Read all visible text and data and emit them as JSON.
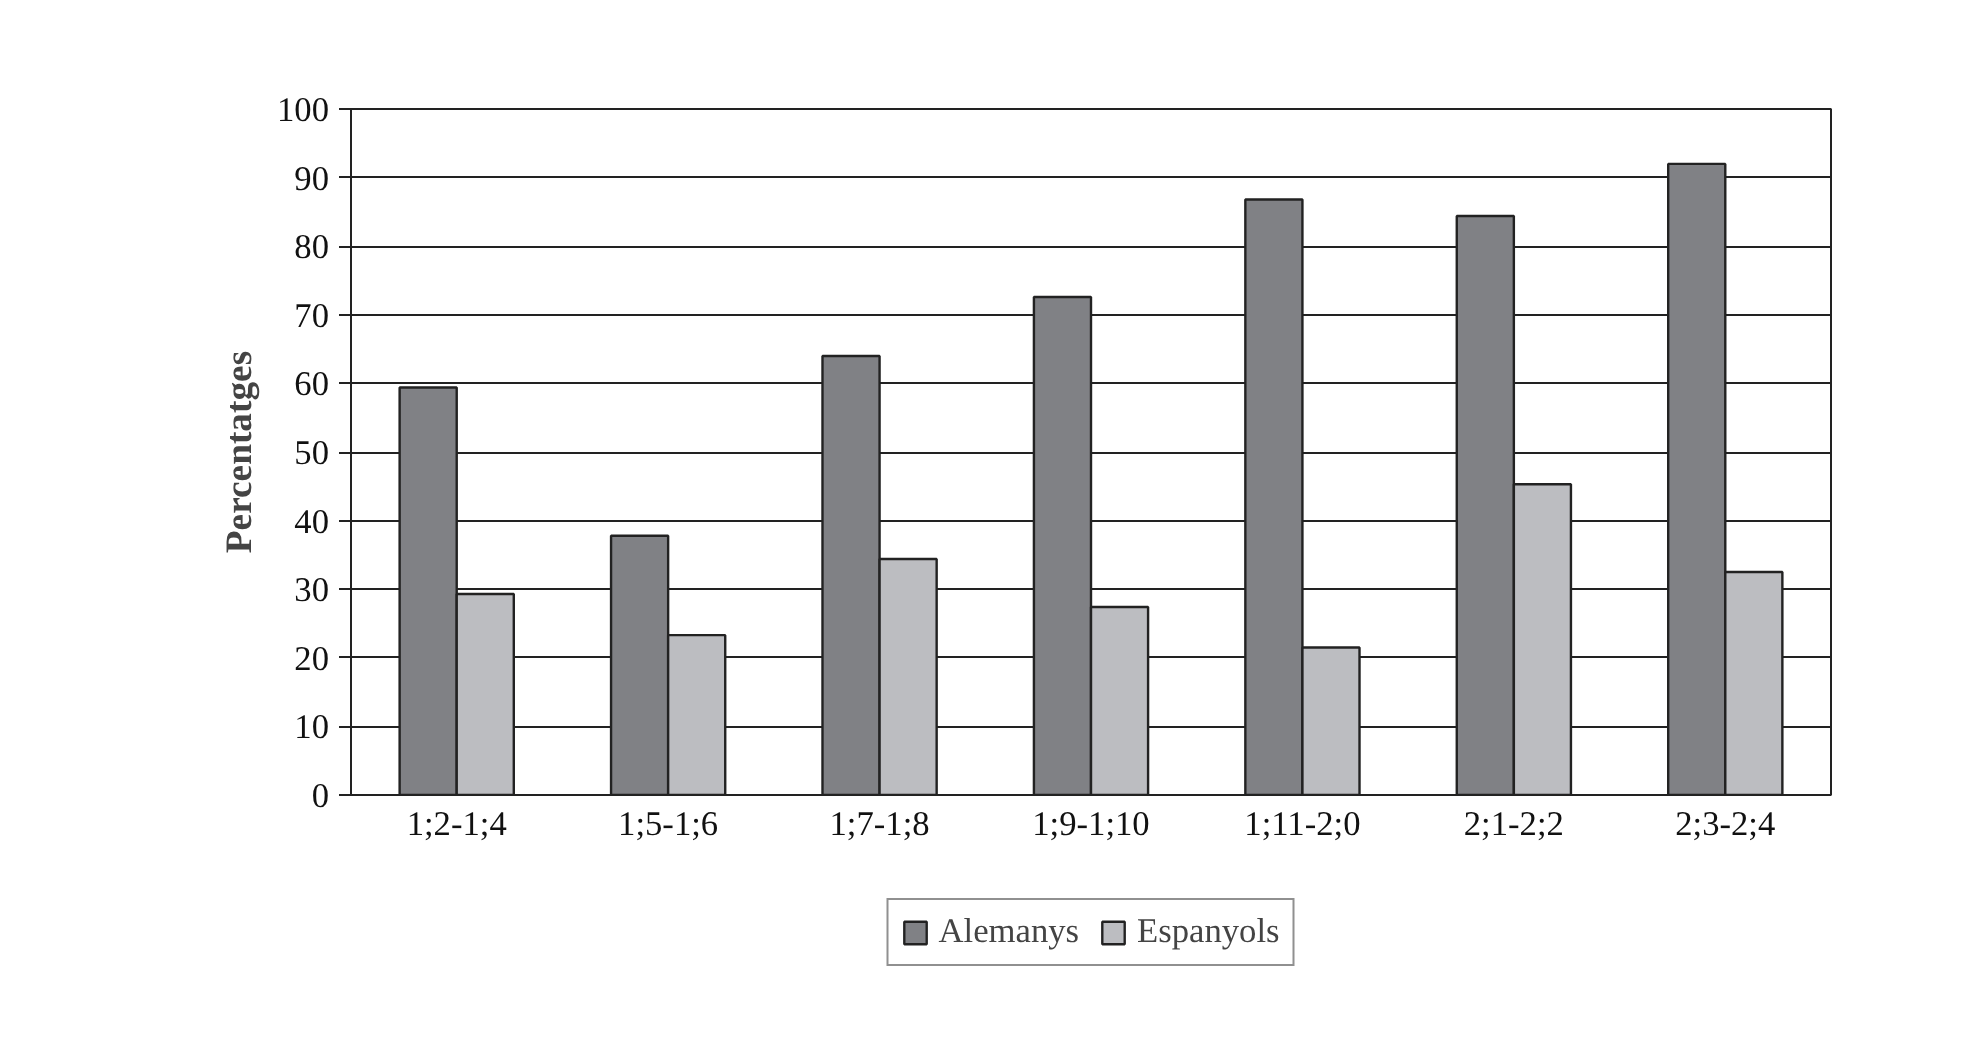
{
  "chart_data": {
    "type": "bar",
    "ylabel": "Percentatges",
    "categories": [
      "1;2-1;4",
      "1;5-1;6",
      "1;7-1;8",
      "1;9-1;10",
      "1;11-2;0",
      "2;1-2;2",
      "2;3-2;4"
    ],
    "series": [
      {
        "name": "Alemanys",
        "color": "#808185",
        "values": [
          59.4,
          37.8,
          64.0,
          72.6,
          86.8,
          84.4,
          92.0
        ]
      },
      {
        "name": "Espanyols",
        "color": "#bcbdc1",
        "values": [
          29.3,
          23.3,
          34.4,
          27.4,
          21.5,
          45.3,
          32.5
        ]
      }
    ],
    "ylim": [
      0,
      100
    ],
    "yticks": [
      0,
      10,
      20,
      30,
      40,
      50,
      60,
      70,
      80,
      90,
      100
    ],
    "grid": "y",
    "legend": "bottom"
  }
}
